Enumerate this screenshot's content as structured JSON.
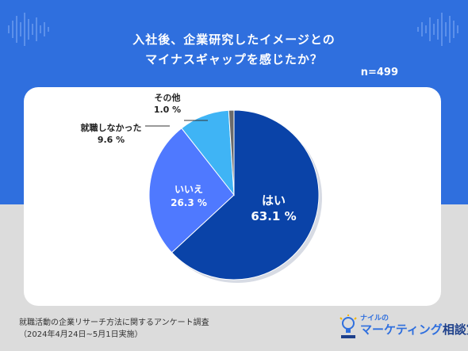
{
  "title_lines": [
    "入社後、企業研究したイメージとの",
    "マイナスギャップを感じたか？"
  ],
  "sample_size": "n=499",
  "chart_data": {
    "type": "pie",
    "title": "入社後、企業研究したイメージとのマイナスギャップを感じたか？",
    "slices": [
      {
        "label": "はい",
        "value": 63.1,
        "value_text": "63.1 %",
        "color": "#0a43a8"
      },
      {
        "label": "いいえ",
        "value": 26.3,
        "value_text": "26.3 %",
        "color": "#4f79ff"
      },
      {
        "label": "就職しなかった",
        "value": 9.6,
        "value_text": "9.6 %",
        "color": "#3fb4f5"
      },
      {
        "label": "その他",
        "value": 1.0,
        "value_text": "1.0 %",
        "color": "#6b6b6b"
      }
    ]
  },
  "footer": {
    "line1": "就職活動の企業リサーチ方法に関するアンケート調査",
    "line2": "（2024年4月24日~5月1日実施）"
  },
  "logo": {
    "small": "ナイルの",
    "main": "マーケティング",
    "suffix": "相談室"
  },
  "colors": {
    "band": "#2f6fde",
    "card": "#ffffff",
    "ground": "#dcdcdc"
  }
}
